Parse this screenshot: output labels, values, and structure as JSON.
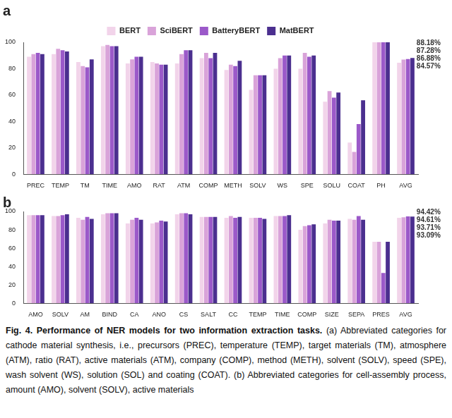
{
  "chart_data": [
    {
      "type": "bar",
      "title": "a",
      "categories": [
        "PREC",
        "TEMP",
        "TM",
        "TIME",
        "AMO",
        "RAT",
        "ATM",
        "COMP",
        "METH",
        "SOLV",
        "WS",
        "SPE",
        "SOLU",
        "COAT",
        "PH",
        "AVG"
      ],
      "series": [
        {
          "name": "BERT",
          "color": "#f2d4ea",
          "values": [
            89,
            91,
            85,
            97,
            84,
            85,
            84,
            88,
            79,
            64,
            80,
            80,
            55,
            24,
            100,
            84.57
          ],
          "value_labels": [
            null,
            null,
            null,
            null,
            null,
            null,
            null,
            null,
            null,
            null,
            null,
            null,
            null,
            null,
            null,
            "84.57%"
          ]
        },
        {
          "name": "SciBERT",
          "color": "#d9a3d9",
          "values": [
            91,
            95,
            82,
            98,
            87,
            84,
            91,
            92,
            83,
            75,
            88,
            92,
            63,
            17,
            100,
            86.88
          ],
          "value_labels": [
            null,
            null,
            null,
            null,
            null,
            null,
            null,
            null,
            null,
            null,
            null,
            null,
            null,
            null,
            null,
            "86.88%"
          ]
        },
        {
          "name": "BatteryBERT",
          "color": "#9b59c9",
          "values": [
            92,
            94,
            81,
            97,
            89,
            83,
            94,
            88,
            82,
            75,
            90,
            89,
            58,
            38,
            100,
            87.28
          ],
          "value_labels": [
            null,
            null,
            null,
            null,
            null,
            null,
            null,
            null,
            null,
            null,
            null,
            null,
            null,
            null,
            null,
            "87.28%"
          ]
        },
        {
          "name": "MatBERT",
          "color": "#4b2f8f",
          "values": [
            91,
            93,
            87,
            97,
            89,
            83,
            94,
            92,
            86,
            75,
            90,
            90,
            62,
            56,
            100,
            88.18
          ],
          "value_labels": [
            null,
            null,
            null,
            null,
            null,
            null,
            null,
            null,
            null,
            null,
            null,
            null,
            null,
            null,
            null,
            "88.18%"
          ]
        }
      ],
      "ylim": [
        0,
        100
      ],
      "yticks": [
        0,
        20,
        40,
        60,
        80,
        100
      ],
      "grid": false,
      "legend": "top",
      "data_labels": true
    },
    {
      "type": "bar",
      "title": "b",
      "categories": [
        "AMO",
        "SOLV",
        "AM",
        "BIND",
        "CA",
        "ANO",
        "CS",
        "SALT",
        "CC",
        "TEMP",
        "TIME",
        "COMP",
        "SIZE",
        "SEPA",
        "PRES",
        "AVG"
      ],
      "series": [
        {
          "name": "BERT",
          "color": "#f2d4ea",
          "values": [
            96,
            95,
            93,
            97,
            87,
            87,
            97,
            94,
            93,
            93,
            95,
            80,
            87,
            92,
            67,
            93.09
          ],
          "value_labels": [
            null,
            null,
            null,
            null,
            null,
            null,
            null,
            null,
            null,
            null,
            null,
            null,
            null,
            null,
            null,
            "93.09%"
          ]
        },
        {
          "name": "SciBERT",
          "color": "#d9a3d9",
          "values": [
            96,
            95,
            91,
            98,
            91,
            88,
            98,
            94,
            95,
            93,
            95,
            84,
            91,
            91,
            67,
            93.71
          ],
          "value_labels": [
            null,
            null,
            null,
            null,
            null,
            null,
            null,
            null,
            null,
            null,
            null,
            null,
            null,
            null,
            null,
            "93.71%"
          ]
        },
        {
          "name": "BatteryBERT",
          "color": "#9b59c9",
          "values": [
            96,
            96,
            94,
            98,
            93,
            90,
            98,
            94,
            93,
            93,
            95,
            85,
            90,
            95,
            33,
            94.61
          ],
          "value_labels": [
            null,
            null,
            null,
            null,
            null,
            null,
            null,
            null,
            null,
            null,
            null,
            null,
            null,
            null,
            null,
            "94.61%"
          ]
        },
        {
          "name": "MatBERT",
          "color": "#4b2f8f",
          "values": [
            96,
            97,
            92,
            98,
            91,
            89,
            97,
            94,
            94,
            92,
            96,
            86,
            90,
            91,
            67,
            94.42
          ],
          "value_labels": [
            null,
            null,
            null,
            null,
            null,
            null,
            null,
            null,
            null,
            null,
            null,
            null,
            null,
            null,
            null,
            "94.42%"
          ]
        }
      ],
      "ylim": [
        0,
        100
      ],
      "yticks": [
        0,
        20,
        40,
        60,
        80,
        100
      ],
      "grid": false,
      "data_labels": true
    }
  ],
  "caption": {
    "bold": "Fig. 4. Performance of NER models for two information extraction tasks.",
    "text": "(a) Abbreviated categories for cathode material synthesis, i.e., precursors (PREC), temperature (TEMP), target materials (TM), atmosphere (ATM), ratio (RAT), active materials (ATM), company (COMP), method (METH), solvent (SOLV), speed (SPE), wash solvent (WS), solution (SOL) and coating (COAT). (b) Abbreviated categories for cell-assembly process, amount (AMO), solvent (SOLV), active materials"
  }
}
